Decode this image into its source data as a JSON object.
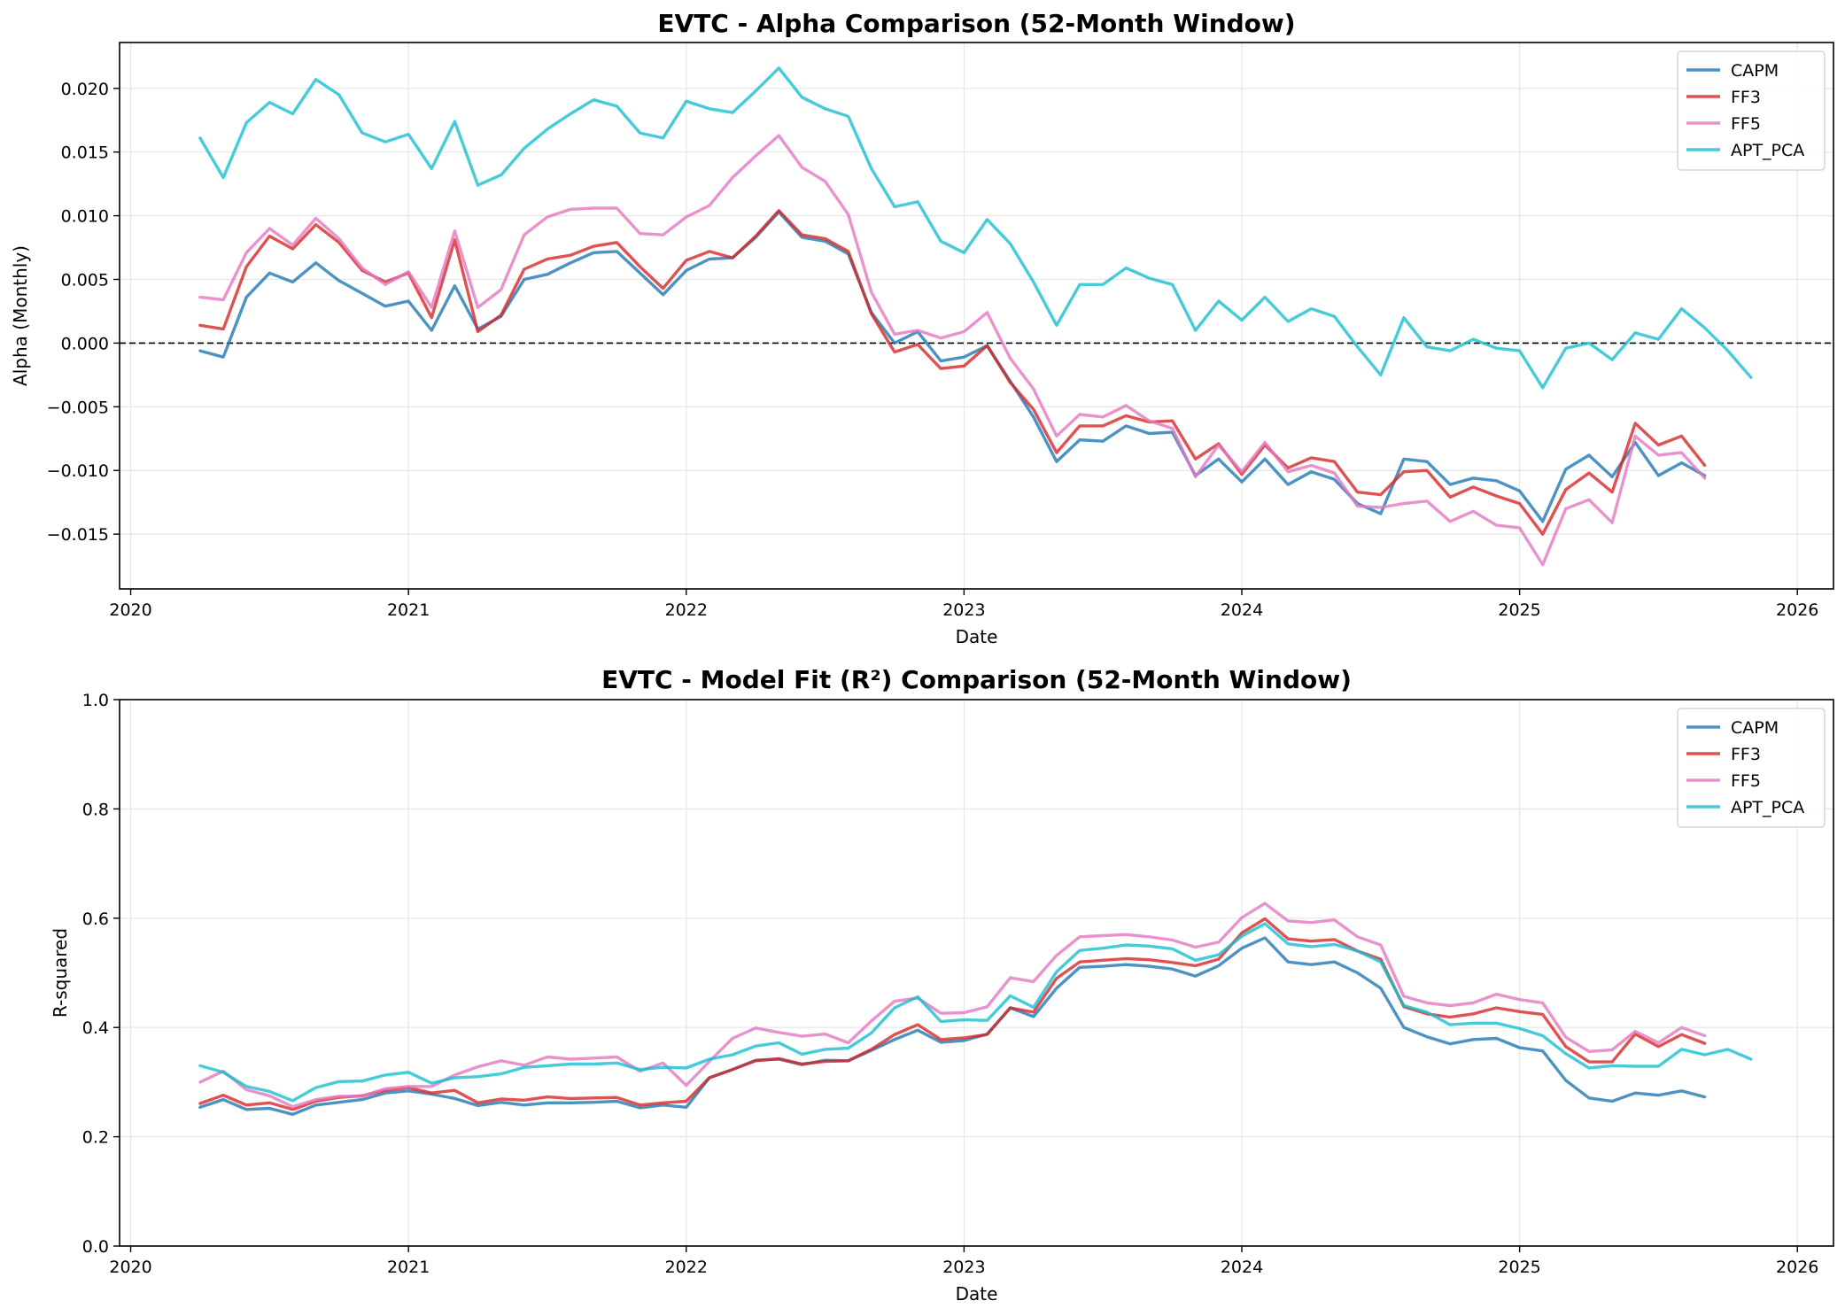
{
  "chart_data": [
    {
      "type": "line",
      "title": "EVTC - Alpha Comparison (52-Month Window)",
      "xlabel": "Date",
      "ylabel": "Alpha (Monthly)",
      "xlim": [
        2019.96,
        2026.13
      ],
      "ylim": [
        -0.0193,
        0.0236
      ],
      "xticks": [
        2020,
        2021,
        2022,
        2023,
        2024,
        2025,
        2026
      ],
      "xtick_labels": [
        "2020",
        "2021",
        "2022",
        "2023",
        "2024",
        "2025",
        "2026"
      ],
      "yticks": [
        -0.015,
        -0.01,
        -0.005,
        0.0,
        0.005,
        0.01,
        0.015,
        0.02
      ],
      "ytick_labels": [
        "−0.015",
        "−0.010",
        "−0.005",
        "0.000",
        "0.005",
        "0.010",
        "0.015",
        "0.020"
      ],
      "grid": true,
      "legend": "top-right",
      "reference_line": 0.0,
      "x_start": 2020.25,
      "x_step": 0.08333,
      "series": [
        {
          "name": "CAPM",
          "color": "#1f77b4",
          "values": [
            -0.0006,
            -0.0011,
            0.0036,
            0.0055,
            0.0048,
            0.0063,
            0.0049,
            0.0039,
            0.0029,
            0.0033,
            0.001,
            0.0045,
            0.0011,
            0.0021,
            0.005,
            0.0054,
            0.0063,
            0.0071,
            0.0072,
            0.0055,
            0.0038,
            0.0057,
            0.0066,
            0.0067,
            0.0083,
            0.0103,
            0.0083,
            0.008,
            0.007,
            0.0024,
            0.0,
            0.0009,
            -0.0014,
            -0.0011,
            -0.0002,
            -0.003,
            -0.0058,
            -0.0093,
            -0.0076,
            -0.0077,
            -0.0065,
            -0.0071,
            -0.007,
            -0.0104,
            -0.0091,
            -0.0109,
            -0.0091,
            -0.0111,
            -0.0101,
            -0.0107,
            -0.0126,
            -0.0134,
            -0.0091,
            -0.0093,
            -0.0111,
            -0.0106,
            -0.0108,
            -0.0116,
            -0.014,
            -0.0099,
            -0.0088,
            -0.0105,
            -0.0078,
            -0.0104,
            -0.0094,
            -0.0104
          ]
        },
        {
          "name": "FF3",
          "color": "#d62728",
          "values": [
            0.0014,
            0.0011,
            0.006,
            0.0084,
            0.0074,
            0.0093,
            0.0079,
            0.0057,
            0.0048,
            0.0055,
            0.002,
            0.0081,
            0.0009,
            0.0022,
            0.0058,
            0.0066,
            0.0069,
            0.0076,
            0.0079,
            0.006,
            0.0043,
            0.0065,
            0.0072,
            0.0067,
            0.0084,
            0.0104,
            0.0085,
            0.0082,
            0.0072,
            0.0023,
            -0.0007,
            -0.0001,
            -0.002,
            -0.0018,
            -0.0002,
            -0.0031,
            -0.0052,
            -0.0086,
            -0.0065,
            -0.0065,
            -0.0057,
            -0.0062,
            -0.0061,
            -0.0091,
            -0.0079,
            -0.0103,
            -0.008,
            -0.0098,
            -0.009,
            -0.0093,
            -0.0117,
            -0.0119,
            -0.0101,
            -0.01,
            -0.0121,
            -0.0113,
            -0.012,
            -0.0126,
            -0.015,
            -0.0115,
            -0.0102,
            -0.0117,
            -0.0063,
            -0.008,
            -0.0073,
            -0.0096
          ]
        },
        {
          "name": "FF5",
          "color": "#e377c2",
          "values": [
            0.0036,
            0.0034,
            0.0071,
            0.009,
            0.0077,
            0.0098,
            0.0082,
            0.0059,
            0.0046,
            0.0056,
            0.0028,
            0.0088,
            0.0028,
            0.0042,
            0.0085,
            0.0099,
            0.0105,
            0.0106,
            0.0106,
            0.0086,
            0.0085,
            0.0099,
            0.0108,
            0.013,
            0.0147,
            0.0163,
            0.0138,
            0.0127,
            0.0101,
            0.004,
            0.0007,
            0.001,
            0.0004,
            0.0009,
            0.0024,
            -0.0012,
            -0.0036,
            -0.0073,
            -0.0056,
            -0.0058,
            -0.0049,
            -0.0061,
            -0.0067,
            -0.0105,
            -0.008,
            -0.0101,
            -0.0078,
            -0.0101,
            -0.0096,
            -0.0102,
            -0.0128,
            -0.0129,
            -0.0126,
            -0.0124,
            -0.014,
            -0.0132,
            -0.0143,
            -0.0145,
            -0.0174,
            -0.013,
            -0.0123,
            -0.0141,
            -0.0073,
            -0.0088,
            -0.0086,
            -0.0106
          ]
        },
        {
          "name": "APT_PCA",
          "color": "#17becf",
          "values": [
            0.0161,
            0.013,
            0.0173,
            0.0189,
            0.018,
            0.0207,
            0.0195,
            0.0165,
            0.0158,
            0.0164,
            0.0137,
            0.0174,
            0.0124,
            0.0132,
            0.0153,
            0.0168,
            0.018,
            0.0191,
            0.0186,
            0.0165,
            0.0161,
            0.019,
            0.0184,
            0.0181,
            0.0198,
            0.0216,
            0.0193,
            0.0184,
            0.0178,
            0.0137,
            0.0107,
            0.0111,
            0.008,
            0.0071,
            0.0097,
            0.0078,
            0.0048,
            0.0014,
            0.0046,
            0.0046,
            0.0059,
            0.0051,
            0.0046,
            0.001,
            0.0033,
            0.0018,
            0.0036,
            0.0017,
            0.0027,
            0.0021,
            -0.0003,
            -0.0025,
            0.002,
            -0.0003,
            -0.0006,
            0.0003,
            -0.0004,
            -0.0006,
            -0.0035,
            -0.0004,
            0.0,
            -0.0013,
            0.0008,
            0.0003,
            0.0027,
            0.0012,
            -0.0006,
            -0.0027
          ]
        }
      ]
    },
    {
      "type": "line",
      "title": "EVTC - Model Fit (R²) Comparison (52-Month Window)",
      "xlabel": "Date",
      "ylabel": "R-squared",
      "xlim": [
        2019.96,
        2026.13
      ],
      "ylim": [
        0.0,
        1.0
      ],
      "xticks": [
        2020,
        2021,
        2022,
        2023,
        2024,
        2025,
        2026
      ],
      "xtick_labels": [
        "2020",
        "2021",
        "2022",
        "2023",
        "2024",
        "2025",
        "2026"
      ],
      "yticks": [
        0.0,
        0.2,
        0.4,
        0.6,
        0.8,
        1.0
      ],
      "ytick_labels": [
        "0.0",
        "0.2",
        "0.4",
        "0.6",
        "0.8",
        "1.0"
      ],
      "grid": true,
      "legend": "top-right",
      "x_start": 2020.25,
      "x_step": 0.08333,
      "series": [
        {
          "name": "CAPM",
          "color": "#1f77b4",
          "values": [
            0.254,
            0.268,
            0.25,
            0.252,
            0.241,
            0.258,
            0.263,
            0.268,
            0.28,
            0.284,
            0.278,
            0.27,
            0.257,
            0.263,
            0.258,
            0.262,
            0.262,
            0.263,
            0.265,
            0.253,
            0.258,
            0.254,
            0.308,
            0.323,
            0.34,
            0.342,
            0.332,
            0.34,
            0.339,
            0.358,
            0.378,
            0.395,
            0.373,
            0.376,
            0.388,
            0.436,
            0.42,
            0.472,
            0.51,
            0.512,
            0.515,
            0.512,
            0.507,
            0.494,
            0.513,
            0.545,
            0.564,
            0.52,
            0.515,
            0.52,
            0.5,
            0.472,
            0.4,
            0.383,
            0.37,
            0.378,
            0.38,
            0.363,
            0.357,
            0.303,
            0.271,
            0.265,
            0.28,
            0.276,
            0.284,
            0.273
          ]
        },
        {
          "name": "FF3",
          "color": "#d62728",
          "values": [
            0.261,
            0.276,
            0.258,
            0.262,
            0.25,
            0.265,
            0.272,
            0.275,
            0.285,
            0.29,
            0.28,
            0.285,
            0.262,
            0.269,
            0.267,
            0.273,
            0.27,
            0.271,
            0.272,
            0.258,
            0.262,
            0.265,
            0.308,
            0.323,
            0.339,
            0.343,
            0.333,
            0.338,
            0.339,
            0.36,
            0.387,
            0.405,
            0.378,
            0.381,
            0.387,
            0.436,
            0.428,
            0.49,
            0.52,
            0.523,
            0.526,
            0.524,
            0.519,
            0.513,
            0.525,
            0.573,
            0.599,
            0.562,
            0.558,
            0.561,
            0.54,
            0.525,
            0.438,
            0.425,
            0.419,
            0.425,
            0.436,
            0.429,
            0.424,
            0.365,
            0.337,
            0.337,
            0.388,
            0.365,
            0.387,
            0.371
          ]
        },
        {
          "name": "FF5",
          "color": "#e377c2",
          "values": [
            0.3,
            0.32,
            0.286,
            0.275,
            0.255,
            0.268,
            0.274,
            0.274,
            0.288,
            0.292,
            0.292,
            0.313,
            0.328,
            0.339,
            0.331,
            0.346,
            0.342,
            0.344,
            0.346,
            0.32,
            0.335,
            0.294,
            0.338,
            0.38,
            0.399,
            0.391,
            0.384,
            0.388,
            0.372,
            0.412,
            0.448,
            0.454,
            0.426,
            0.427,
            0.438,
            0.491,
            0.484,
            0.532,
            0.566,
            0.568,
            0.57,
            0.566,
            0.56,
            0.547,
            0.556,
            0.601,
            0.627,
            0.595,
            0.592,
            0.597,
            0.566,
            0.551,
            0.457,
            0.445,
            0.44,
            0.445,
            0.461,
            0.451,
            0.445,
            0.382,
            0.356,
            0.359,
            0.393,
            0.372,
            0.4,
            0.385
          ]
        },
        {
          "name": "APT_PCA",
          "color": "#17becf",
          "values": [
            0.33,
            0.318,
            0.292,
            0.283,
            0.266,
            0.29,
            0.301,
            0.302,
            0.313,
            0.318,
            0.298,
            0.308,
            0.31,
            0.315,
            0.327,
            0.33,
            0.333,
            0.333,
            0.335,
            0.323,
            0.327,
            0.326,
            0.342,
            0.35,
            0.366,
            0.372,
            0.351,
            0.36,
            0.362,
            0.39,
            0.436,
            0.456,
            0.411,
            0.414,
            0.413,
            0.458,
            0.437,
            0.502,
            0.541,
            0.545,
            0.551,
            0.549,
            0.544,
            0.523,
            0.533,
            0.567,
            0.59,
            0.553,
            0.548,
            0.552,
            0.54,
            0.52,
            0.44,
            0.428,
            0.405,
            0.408,
            0.408,
            0.398,
            0.385,
            0.352,
            0.326,
            0.33,
            0.329,
            0.329,
            0.36,
            0.35,
            0.36,
            0.342
          ]
        }
      ]
    }
  ]
}
